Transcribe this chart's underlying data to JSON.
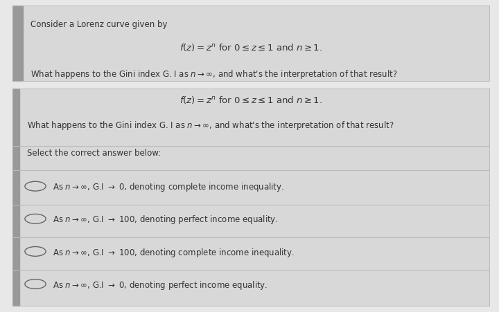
{
  "fig_bg": "#e8e8e8",
  "panel_bg": "#d8d8d8",
  "panel_border": "#bbbbbb",
  "left_bar_color": "#999999",
  "divider_color": "#bbbbbb",
  "text_color": "#333333",
  "top_line1": "Consider a Lorenz curve given by",
  "top_formula": "$f(z) = z^n$ for $0 \\leq z \\leq 1$ and $n \\geq 1$.",
  "top_question": "What happens to the Gini index G. I as $n \\rightarrow \\infty$, and what's the interpretation of that result?",
  "bottom_formula": "$f(z) = z^n$ for $0 \\leq z \\leq 1$ and $n \\geq 1$.",
  "bottom_question": "What happens to the Gini index G. I as $n \\rightarrow \\infty$, and what's the interpretation of that result?",
  "select_label": "Select the correct answer below:",
  "options": [
    "As $n \\rightarrow \\infty$, G.I $\\rightarrow$ 0, denoting complete income inequality.",
    "As $n \\rightarrow \\infty$, G.I $\\rightarrow$ 100, denoting perfect income equality.",
    "As $n \\rightarrow \\infty$, G.I $\\rightarrow$ 100, denoting complete income inequality.",
    "As $n \\rightarrow \\infty$, G.I $\\rightarrow$ 0, denoting perfect income equality."
  ]
}
